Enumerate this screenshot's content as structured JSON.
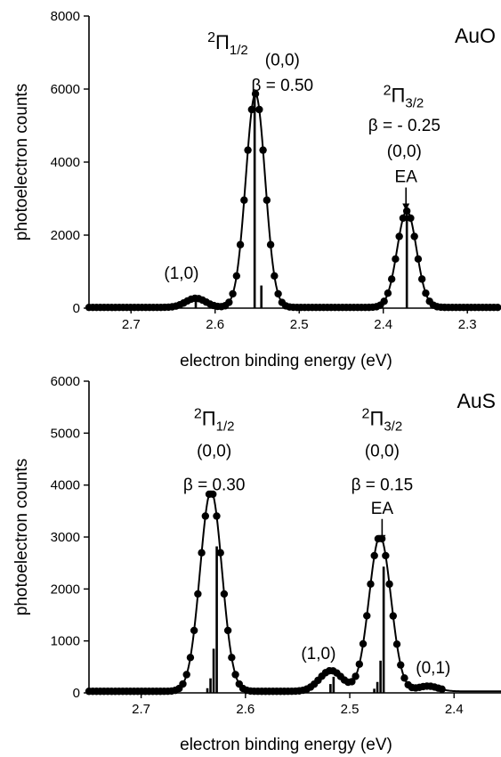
{
  "chart_data": [
    {
      "type": "scatter",
      "title": "AuO",
      "xlabel": "electron binding energy (eV)",
      "ylabel": "photoelectron counts",
      "x_reversed": true,
      "xlim": [
        2.75,
        2.26
      ],
      "ylim": [
        0,
        8000
      ],
      "xticks": [
        2.7,
        2.6,
        2.5,
        2.4,
        2.3
      ],
      "xtick_labels": [
        "2.7",
        "2.6",
        "2.5",
        "2.4",
        "2.3"
      ],
      "yticks": [
        0,
        2000,
        4000,
        6000,
        8000
      ],
      "ytick_labels": [
        "0",
        "2000",
        "4000",
        "6000",
        "8000"
      ],
      "grid": false,
      "peaks": [
        {
          "center": 2.623,
          "height": 250,
          "width": 0.012
        },
        {
          "center": 2.552,
          "height": 5850,
          "width": 0.0115
        },
        {
          "center": 2.372,
          "height": 2640,
          "width": 0.0115
        }
      ],
      "baseline": 20,
      "points_x_range": [
        2.75,
        2.26
      ],
      "points_step": 0.0045,
      "stick_spectrum": [
        {
          "x": 2.623,
          "y": 250
        },
        {
          "x": 2.553,
          "y": 5850
        },
        {
          "x": 2.545,
          "y": 620
        },
        {
          "x": 2.372,
          "y": 2630
        }
      ],
      "annotations": [
        {
          "text": "(1,0)",
          "x": 2.64,
          "y": 800
        },
        {
          "text": "(0,0)",
          "x": 2.52,
          "y": 6650
        },
        {
          "text": "β = 0.50",
          "x": 2.52,
          "y": 5950
        },
        {
          "text": "(0,0)",
          "x": 2.375,
          "y": 4150
        },
        {
          "text": "β = - 0.25",
          "x": 2.375,
          "y": 4850
        },
        {
          "text": "EA",
          "x": 2.373,
          "y": 3450
        }
      ],
      "state_labels": [
        {
          "mult": "2",
          "sym": "Π",
          "sub": "1/2",
          "x": 2.585,
          "y": 7100
        },
        {
          "mult": "2",
          "sym": "Π",
          "sub": "3/2",
          "x": 2.376,
          "y": 5650
        }
      ]
    },
    {
      "type": "scatter",
      "title": "AuS",
      "xlabel": "electron binding energy (eV)",
      "ylabel": "photoelectron counts",
      "x_reversed": true,
      "xlim": [
        2.75,
        2.355
      ],
      "ylim": [
        0,
        6000
      ],
      "xticks": [
        2.7,
        2.6,
        2.5,
        2.4
      ],
      "xtick_labels": [
        "2.7",
        "2.6",
        "2.5",
        "2.4"
      ],
      "yticks": [
        0,
        1000,
        2000,
        3000,
        4000,
        5000,
        6000
      ],
      "ytick_labels": [
        "0",
        "1000",
        "2000",
        "3000",
        "4000",
        "5000",
        "6000"
      ],
      "grid": false,
      "peaks": [
        {
          "center": 2.633,
          "height": 3850,
          "width": 0.0105
        },
        {
          "center": 2.518,
          "height": 400,
          "width": 0.011
        },
        {
          "center": 2.471,
          "height": 2980,
          "width": 0.0105
        },
        {
          "center": 2.425,
          "height": 100,
          "width": 0.01
        }
      ],
      "baseline": 30,
      "points_x_range": [
        2.75,
        2.41
      ],
      "points_step": 0.0036,
      "stick_spectrum": [
        {
          "x": 2.6275,
          "y": 2820
        },
        {
          "x": 2.6305,
          "y": 850
        },
        {
          "x": 2.6335,
          "y": 280
        },
        {
          "x": 2.6365,
          "y": 90
        },
        {
          "x": 2.5155,
          "y": 310
        },
        {
          "x": 2.5185,
          "y": 170
        },
        {
          "x": 2.4675,
          "y": 2430
        },
        {
          "x": 2.4705,
          "y": 620
        },
        {
          "x": 2.4735,
          "y": 210
        },
        {
          "x": 2.4765,
          "y": 80
        }
      ],
      "annotations": [
        {
          "text": "(0,0)",
          "x": 2.63,
          "y": 4550
        },
        {
          "text": "β = 0.30",
          "x": 2.63,
          "y": 3900
        },
        {
          "text": "(1,0)",
          "x": 2.53,
          "y": 650
        },
        {
          "text": "(0,0)",
          "x": 2.469,
          "y": 4550
        },
        {
          "text": "β = 0.15",
          "x": 2.469,
          "y": 3900
        },
        {
          "text": "EA",
          "x": 2.469,
          "y": 3450
        },
        {
          "text": "(0,1)",
          "x": 2.42,
          "y": 380
        }
      ],
      "state_labels": [
        {
          "mult": "2",
          "sym": "Π",
          "sub": "1/2",
          "x": 2.63,
          "y": 5150
        },
        {
          "mult": "2",
          "sym": "Π",
          "sub": "3/2",
          "x": 2.469,
          "y": 5150
        }
      ]
    }
  ]
}
